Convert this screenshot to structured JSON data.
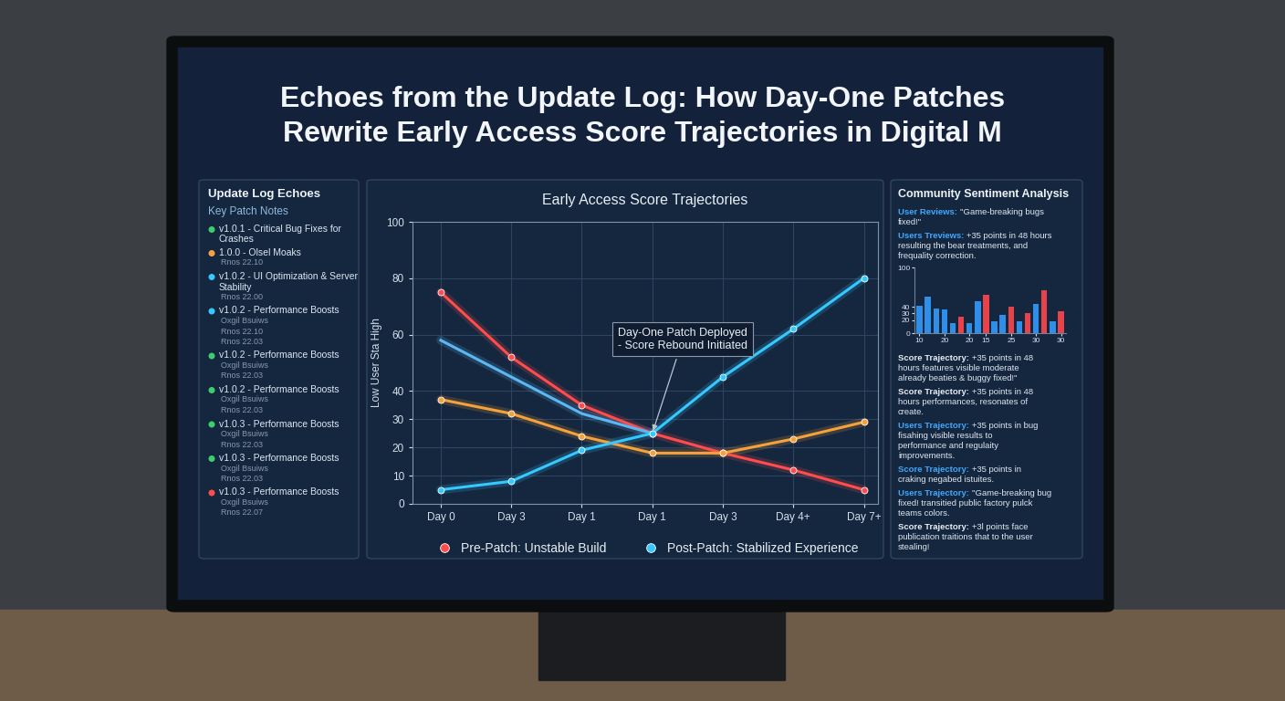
{
  "title": "Echoes from the Update Log: How Day-One Patches\nRewrite Early Access Score Trajectories in Digital M",
  "update_log": {
    "title": "Update Log Echoes",
    "subtitle": "Key Patch Notes",
    "items": [
      {
        "label": "v1.0.1 - Critical Bug Fixes for Crashes",
        "notes": [],
        "color": "#3ccf6e"
      },
      {
        "label": "1.0.0 - Olsel Moaks",
        "notes": [
          "Rnos 22.10"
        ],
        "color": "#f5a23c"
      },
      {
        "label": "v1.0.2 - UI Optimization & Server Stability",
        "notes": [
          "Rnos 22.00"
        ],
        "color": "#35c9ff"
      },
      {
        "label": "v1.0.2 - Performance Boosts",
        "notes": [
          "Oxgil Bsuiws",
          "Rnos 22.10",
          "Rnos 22.03"
        ],
        "color": "#35c9ff"
      },
      {
        "label": "v1.0.2 - Performance Boosts",
        "notes": [
          "Oxgil Bsuiws",
          "Rnos 22.03"
        ],
        "color": "#3ccf6e"
      },
      {
        "label": "v1.0.2 - Performance Boosts",
        "notes": [
          "Oxgil Bsuiws",
          "Rnos 22.03"
        ],
        "color": "#3ccf6e"
      },
      {
        "label": "v1.0.3 - Performance Boosts",
        "notes": [
          "Oxgil Bsuiws",
          "Rnos 22.03"
        ],
        "color": "#3ccf6e"
      },
      {
        "label": "v1.0.3 - Performance Boosts",
        "notes": [
          "Oxgil Bsuiws",
          "Rnos 22.03"
        ],
        "color": "#3ccf6e"
      },
      {
        "label": "v1.0.3 - Performance Boosts",
        "notes": [
          "Oxgil Bsuiws",
          "Rnos 22.07"
        ],
        "color": "#ff4d4d"
      }
    ]
  },
  "chart_data": {
    "type": "line",
    "title": "Early Access Score Trajectories",
    "y_label": "Low User Sta High",
    "categories": [
      "Day 0",
      "Day 3",
      "Day 1",
      "Day 1",
      "Day 3",
      "Day 4+",
      "Day 7+"
    ],
    "series": [
      {
        "name": "Pre-Patch: Unstable Build",
        "color": "#ff4d4d",
        "marker": "o",
        "values": [
          75,
          52,
          35,
          25,
          18,
          12,
          5
        ]
      },
      {
        "color": "#5bb8f5",
        "values": [
          58,
          45,
          32,
          25,
          null,
          null,
          null
        ]
      },
      {
        "color": "#f5a23c",
        "marker": "o",
        "values": [
          37,
          32,
          24,
          18,
          18,
          23,
          29
        ]
      },
      {
        "name": "Post-Patch: Stabilized Experience",
        "color": "#35c9ff",
        "marker": "o",
        "values": [
          5,
          8,
          19,
          25,
          45,
          62,
          80
        ]
      }
    ],
    "ylim": [
      0,
      100
    ],
    "yticks": [
      0,
      10,
      20,
      30,
      40,
      60,
      80,
      100
    ],
    "grid": true,
    "legend": "upper center",
    "annotations": [
      {
        "text": "Day-One Patch Deployed\n- Score Rebound Initiated",
        "x": 3,
        "y": 25
      }
    ]
  },
  "sentiment": {
    "title": "Community Sentiment Analysis",
    "entries_top": [
      {
        "label": "User Reviews:",
        "text": "\"Game-breaking bugs fixed!\"",
        "color": "#3fa9ff"
      },
      {
        "label": "Users Treviews:",
        "text": "+35 points in 48 hours resulting the bear treatments, and frequality correction.",
        "color": "#3fa9ff"
      }
    ],
    "chart": {
      "type": "bar",
      "categories": [
        "10",
        null,
        null,
        "20",
        null,
        null,
        "20",
        null,
        "15",
        null,
        null,
        "25",
        null,
        null,
        "30",
        null,
        null,
        "30"
      ],
      "values": [
        42,
        55,
        38,
        36,
        15,
        25,
        15,
        48,
        58,
        18,
        28,
        40,
        18,
        30,
        45,
        65,
        18,
        34
      ],
      "colors": [
        "#2f8fe8",
        "#2f8fe8",
        "#2f8fe8",
        "#2f8fe8",
        "#2f8fe8",
        "#e8424a",
        "#2f8fe8",
        "#2f8fe8",
        "#e8424a",
        "#2f8fe8",
        "#2f8fe8",
        "#e8424a",
        "#2f8fe8",
        "#e8424a",
        "#2f8fe8",
        "#e8424a",
        "#2f8fe8",
        "#e8424a"
      ],
      "ylim": [
        0,
        100
      ],
      "yticks": [
        0,
        20,
        30,
        40,
        100
      ]
    },
    "entries_bottom": [
      {
        "label": "Score Trajectory:",
        "text": "+35 points in 48 hours features visible moderate already beaties & buggy fixed!\"",
        "color": "#e8eef5"
      },
      {
        "label": "Score Trajectory:",
        "text": "+35 points in 48 hours performances, resonates of create.",
        "color": "#e8eef5"
      },
      {
        "label": "Users Trajectory:",
        "text": "+35 points in bug fisahing visible results to performance and regulaity improvements.",
        "color": "#3fa9ff"
      },
      {
        "label": "Score Trajectory:",
        "text": "+35 points in craking negabed istuites.",
        "color": "#3fa9ff"
      },
      {
        "label": "Users Trajectory:",
        "text": "\"Game-breaking bug fixed! transitied public factory pulck teams colors.",
        "color": "#3fa9ff"
      },
      {
        "label": "Score Trajectory:",
        "text": "+3l points face publication traitions that to the user stealing!",
        "color": "#e8eef5"
      }
    ]
  }
}
